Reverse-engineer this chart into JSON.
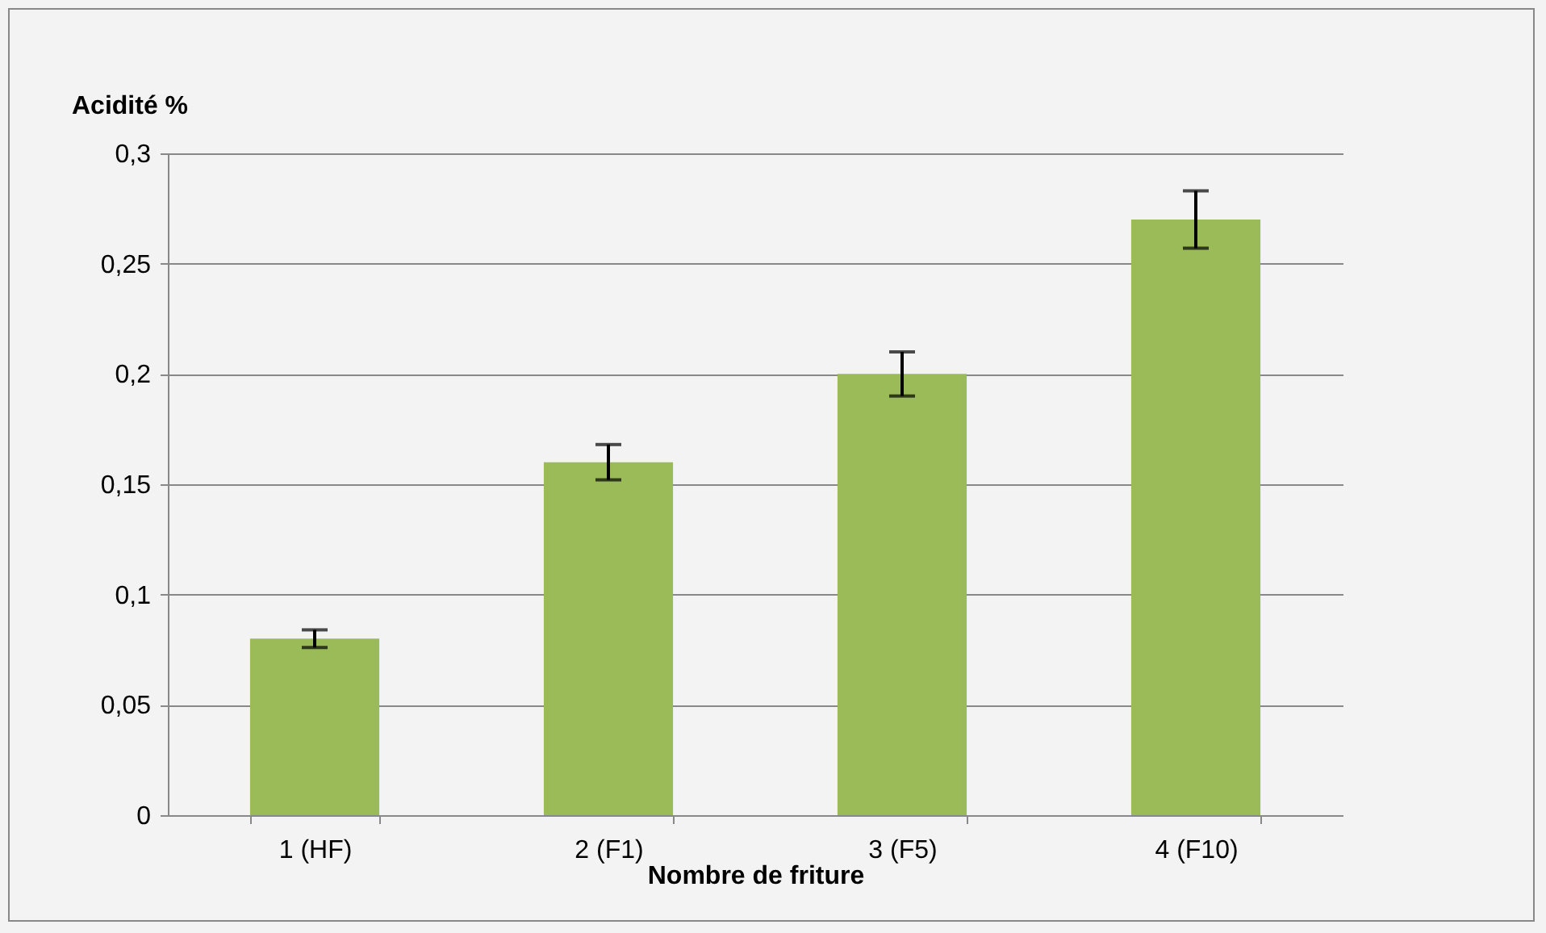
{
  "chart_data": {
    "type": "bar",
    "xlabel": "Nombre de friture",
    "ylabel": "Acidité %",
    "categories": [
      "1 (HF)",
      "2 (F1)",
      "3 (F5)",
      "4 (F10)"
    ],
    "values": [
      0.08,
      0.16,
      0.2,
      0.27
    ],
    "errors": [
      0.004,
      0.008,
      0.01,
      0.013
    ],
    "color": "#9bbb59",
    "ylim": [
      0,
      0.3
    ],
    "yticks": [
      {
        "value": 0,
        "label": "0"
      },
      {
        "value": 0.05,
        "label": "0,05"
      },
      {
        "value": 0.1,
        "label": "0,1"
      },
      {
        "value": 0.15,
        "label": "0,15"
      },
      {
        "value": 0.2,
        "label": "0,2"
      },
      {
        "value": 0.25,
        "label": "0,25"
      },
      {
        "value": 0.3,
        "label": "0,3"
      }
    ],
    "grid": "y"
  }
}
